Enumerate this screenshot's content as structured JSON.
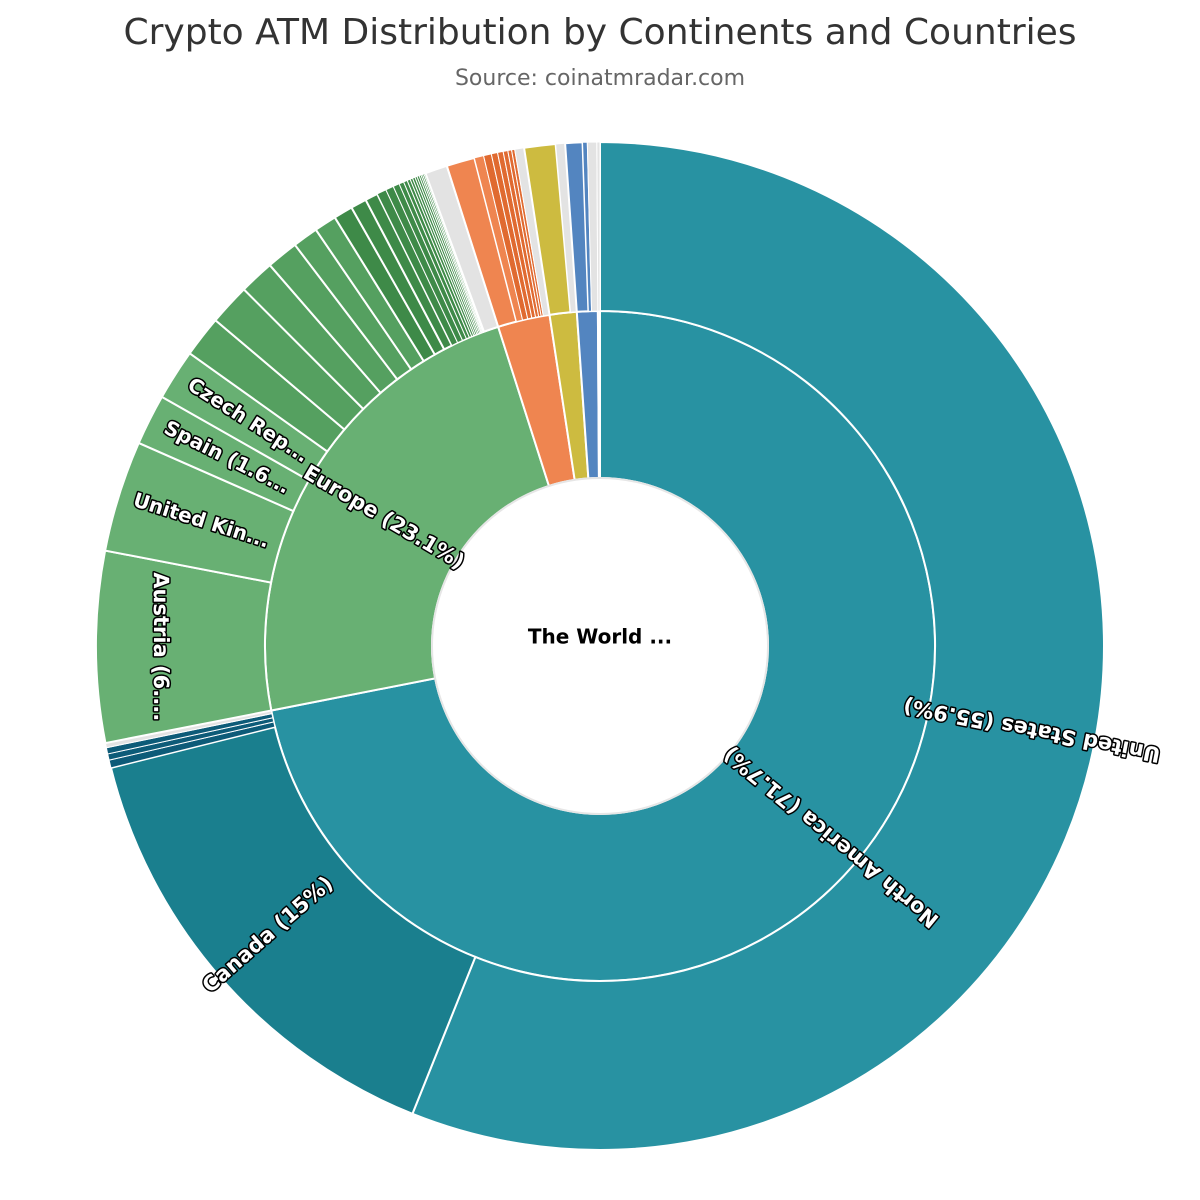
{
  "title": "Crypto ATM Distribution by Continents and Countries",
  "subtitle": "Source: coinatmradar.com",
  "chart_data": {
    "type": "sunburst",
    "root": {
      "label": "The World ..."
    },
    "colors": {
      "north_america": "#2892a2",
      "canada": "#1a7f8e",
      "north_america_small": "#0d5b78",
      "europe": "#68b073",
      "europe_country": "#55a060",
      "europe_small": "#3e8a48",
      "asia": "#ef8550",
      "asia_small": "#e06a30",
      "yellow": "#cdbb40",
      "blue": "#5385c0",
      "other": "#e3e3e3"
    },
    "continents": [
      {
        "key": "north_america",
        "label": "North America (71.7%)",
        "value": 71.7,
        "color_key": "north_america",
        "countries": [
          {
            "label": "United States (55.9%)",
            "value": 55.9,
            "color_key": "north_america"
          },
          {
            "label": "Canada (15%)",
            "value": 15.0,
            "color_key": "canada"
          },
          {
            "label": "",
            "value": 0.25,
            "color_key": "north_america_small"
          },
          {
            "label": "",
            "value": 0.2,
            "color_key": "north_america_small"
          },
          {
            "label": "",
            "value": 0.2,
            "color_key": "north_america_small"
          },
          {
            "label": "",
            "value": 0.15,
            "color_key": "other"
          }
        ]
      },
      {
        "key": "europe",
        "label": "Europe (23.1%)",
        "value": 23.1,
        "color_key": "europe",
        "countries": [
          {
            "label": "Austria (6....",
            "value": 6.0,
            "color_key": "europe"
          },
          {
            "label": "United Kin...",
            "value": 3.5,
            "color_key": "europe"
          },
          {
            "label": "Spain (1.6...",
            "value": 1.6,
            "color_key": "europe"
          },
          {
            "label": "Czech Rep...",
            "value": 1.6,
            "color_key": "europe"
          },
          {
            "label": "",
            "value": 1.3,
            "color_key": "europe_country"
          },
          {
            "label": "",
            "value": 1.3,
            "color_key": "europe_country"
          },
          {
            "label": "",
            "value": 1.1,
            "color_key": "europe_country"
          },
          {
            "label": "",
            "value": 1.0,
            "color_key": "europe_country"
          },
          {
            "label": "",
            "value": 0.8,
            "color_key": "europe_country"
          },
          {
            "label": "",
            "value": 0.7,
            "color_key": "europe_country"
          },
          {
            "label": "",
            "value": 0.6,
            "color_key": "europe_small"
          },
          {
            "label": "",
            "value": 0.5,
            "color_key": "europe_small"
          },
          {
            "label": "",
            "value": 0.4,
            "color_key": "europe_small"
          },
          {
            "label": "",
            "value": 0.3,
            "color_key": "europe_small"
          },
          {
            "label": "",
            "value": 0.25,
            "color_key": "europe_small"
          },
          {
            "label": "",
            "value": 0.2,
            "color_key": "europe_small"
          },
          {
            "label": "",
            "value": 0.15,
            "color_key": "europe_small"
          },
          {
            "label": "",
            "value": 0.12,
            "color_key": "europe_small"
          },
          {
            "label": "",
            "value": 0.1,
            "color_key": "europe_small"
          },
          {
            "label": "",
            "value": 0.08,
            "color_key": "europe_small"
          },
          {
            "label": "",
            "value": 0.08,
            "color_key": "europe_small"
          },
          {
            "label": "",
            "value": 0.07,
            "color_key": "europe_small"
          },
          {
            "label": "",
            "value": 0.07,
            "color_key": "europe_small"
          },
          {
            "label": "",
            "value": 0.06,
            "color_key": "europe_small"
          },
          {
            "label": "",
            "value": 0.05,
            "color_key": "europe_small"
          },
          {
            "label": "",
            "value": 0.05,
            "color_key": "europe_small"
          },
          {
            "label": "",
            "value": 0.05,
            "color_key": "europe_small"
          },
          {
            "label": "",
            "value": 0.7,
            "color_key": "other"
          }
        ]
      },
      {
        "key": "asia",
        "label": "",
        "value": 2.5,
        "color_key": "asia",
        "countries": [
          {
            "label": "",
            "value": 0.9,
            "color_key": "asia"
          },
          {
            "label": "",
            "value": 0.3,
            "color_key": "asia"
          },
          {
            "label": "",
            "value": 0.25,
            "color_key": "asia_small"
          },
          {
            "label": "",
            "value": 0.2,
            "color_key": "asia_small"
          },
          {
            "label": "",
            "value": 0.18,
            "color_key": "asia_small"
          },
          {
            "label": "",
            "value": 0.15,
            "color_key": "asia_small"
          },
          {
            "label": "",
            "value": 0.12,
            "color_key": "asia_small"
          },
          {
            "label": "",
            "value": 0.1,
            "color_key": "asia_small"
          },
          {
            "label": "",
            "value": 0.3,
            "color_key": "other"
          }
        ]
      },
      {
        "key": "continent_yellow",
        "label": "",
        "value": 1.3,
        "color_key": "yellow",
        "countries": [
          {
            "label": "",
            "value": 1.0,
            "color_key": "yellow"
          },
          {
            "label": "",
            "value": 0.3,
            "color_key": "other"
          }
        ]
      },
      {
        "key": "continent_blue",
        "label": "",
        "value": 1.0,
        "color_key": "blue",
        "countries": [
          {
            "label": "",
            "value": 0.55,
            "color_key": "blue"
          },
          {
            "label": "",
            "value": 0.15,
            "color_key": "blue"
          },
          {
            "label": "",
            "value": 0.3,
            "color_key": "other"
          }
        ]
      },
      {
        "key": "continent_other",
        "label": "",
        "value": 0.1,
        "color_key": "other",
        "countries": [
          {
            "label": "",
            "value": 0.1,
            "color_key": "other"
          }
        ]
      }
    ]
  }
}
